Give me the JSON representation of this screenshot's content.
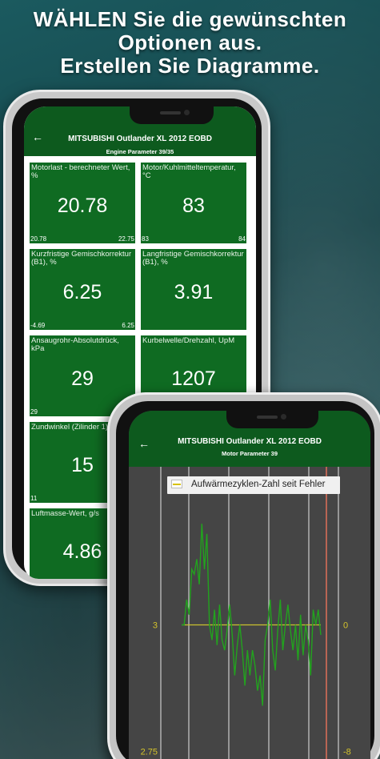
{
  "headline": {
    "line1": "WÄHLEN Sie die gewünschten",
    "line2": "Optionen aus.",
    "line3": "Erstellen Sie Diagramme."
  },
  "phone1": {
    "back_icon": "arrow-left-icon",
    "title": "MITSUBISHI Outlander XL 2012 EOBD",
    "subtitle": "Engine Parameter 39/35",
    "tiles": [
      {
        "label": "Motorlast - berechneter Wert, %",
        "value": "20.78",
        "min": "20.78",
        "max": "22.75"
      },
      {
        "label": "Motor/Kuhlmitteltemperatur, °C",
        "value": "83",
        "min": "83",
        "max": "84"
      },
      {
        "label": "Kurzfristige Gemischkorrektur (B1), %",
        "value": "6.25",
        "min": "-4.69",
        "max": "6.25"
      },
      {
        "label": "Langfristige Gemischkorrektur (B1), %",
        "value": "3.91",
        "min": "",
        "max": ""
      },
      {
        "label": "Ansaugrohr-Absolutdrück, kPa",
        "value": "29",
        "min": "29",
        "max": ""
      },
      {
        "label": "Kurbelwelle/Drehzahl, UpM",
        "value": "1207",
        "min": "",
        "max": ""
      },
      {
        "label": "Zundwinkel (Zilinder 1)",
        "value": "15",
        "min": "11",
        "max": ""
      },
      {
        "label": "Luftmasse-Wert, g/s",
        "value": "4.86",
        "min": "",
        "max": ""
      }
    ]
  },
  "phone2": {
    "back_icon": "arrow-left-icon",
    "title": "MITSUBISHI Outlander XL 2012 EOBD",
    "subtitle": "Motor Parameter 39",
    "legend": "Aufwärmezyklen-Zahl seit Fehler",
    "chart_data": {
      "type": "line",
      "series": [
        {
          "name": "Aufwärmezyklen-Zahl seit Fehler",
          "color": "#22a31e",
          "values": [
            3.0,
            3.0,
            3.05,
            3.02,
            3.11,
            3.1,
            3.13,
            3.08,
            3.2,
            3.11,
            3.18,
            3.0,
            2.97,
            3.03,
            2.96,
            3.04,
            2.97,
            2.95,
            2.99,
            3.04,
            2.98,
            2.9,
            2.96,
            3.0,
            2.95,
            2.88,
            2.95,
            2.9,
            2.95,
            2.92,
            2.87,
            2.9,
            2.84,
            2.97,
            3.0,
            3.05,
            2.95,
            2.91,
            2.99,
            3.05,
            2.95,
            3.0,
            3.04,
            2.99,
            2.95,
            3.0,
            2.93,
            3.02,
            2.94,
            3.0,
            2.97,
            2.9,
            3.03,
            3.0,
            3.03,
            2.98
          ]
        },
        {
          "name": "",
          "color": "#c9c22e",
          "values": [
            3.0,
            3.0
          ]
        }
      ],
      "y_left_ticks": [
        "3",
        "2.75"
      ],
      "y_right_ticks": [
        "0",
        "-8"
      ],
      "ylim": [
        2.73,
        3.3
      ],
      "grid": true
    }
  }
}
